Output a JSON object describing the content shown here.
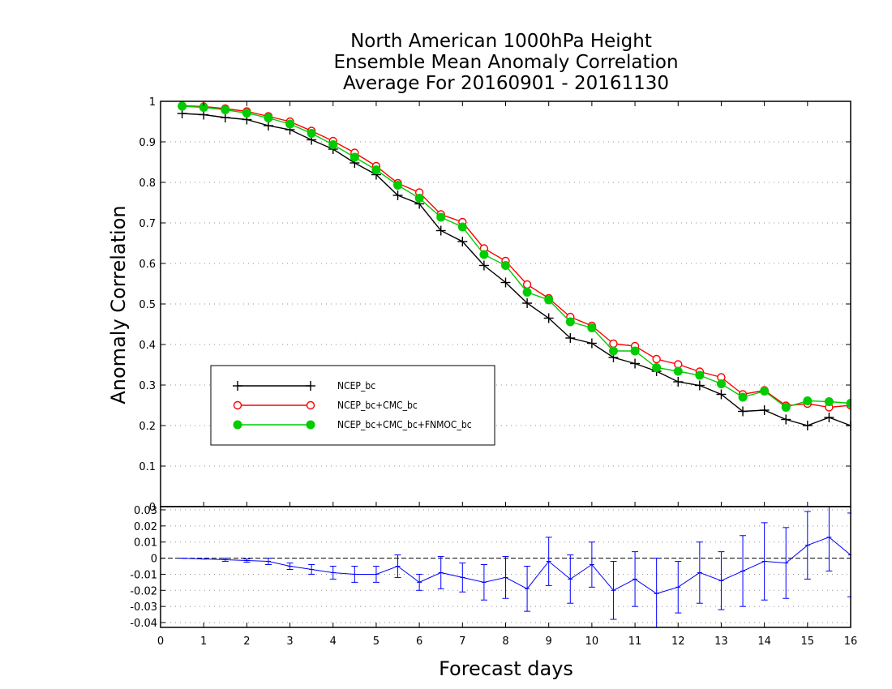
{
  "chart_data": [
    {
      "type": "line",
      "title_lines": [
        "North American 1000hPa Height",
        "Ensemble Mean Anomaly Correlation",
        "Average For 20160901 - 20161130"
      ],
      "xlabel": "Forecast days",
      "ylabel": "Anomaly Correlation",
      "xlim": [
        0,
        16
      ],
      "ylim": [
        0,
        1
      ],
      "grid": true,
      "legend_position": "lower-left",
      "x_ticks": [
        "0",
        "1",
        "2",
        "3",
        "4",
        "5",
        "6",
        "7",
        "8",
        "9",
        "10",
        "11",
        "12",
        "13",
        "14",
        "15",
        "16"
      ],
      "y_ticks": [
        "0",
        "0.1",
        "0.2",
        "0.3",
        "0.4",
        "0.5",
        "0.6",
        "0.7",
        "0.8",
        "0.9",
        "1"
      ],
      "x": [
        0.5,
        1,
        1.5,
        2,
        2.5,
        3,
        3.5,
        4,
        4.5,
        5,
        5.5,
        6,
        6.5,
        7,
        7.5,
        8,
        8.5,
        9,
        9.5,
        10,
        10.5,
        11,
        11.5,
        12,
        12.5,
        13,
        13.5,
        14,
        14.5,
        15,
        15.5,
        16
      ],
      "series": [
        {
          "name": "NCEP_bc",
          "color": "#000000",
          "marker": "plus",
          "values": [
            0.97,
            0.967,
            0.96,
            0.955,
            0.94,
            0.93,
            0.905,
            0.882,
            0.848,
            0.819,
            0.768,
            0.747,
            0.681,
            0.654,
            0.595,
            0.553,
            0.502,
            0.465,
            0.416,
            0.403,
            0.368,
            0.353,
            0.334,
            0.308,
            0.299,
            0.277,
            0.235,
            0.238,
            0.215,
            0.2,
            0.22,
            0.2
          ]
        },
        {
          "name": "NCEP_bc+CMC_bc",
          "color": "#ff0000",
          "marker": "open-circle",
          "values": [
            0.989,
            0.987,
            0.982,
            0.975,
            0.963,
            0.95,
            0.927,
            0.902,
            0.873,
            0.84,
            0.798,
            0.775,
            0.721,
            0.702,
            0.637,
            0.606,
            0.548,
            0.514,
            0.468,
            0.446,
            0.402,
            0.396,
            0.364,
            0.351,
            0.333,
            0.319,
            0.277,
            0.287,
            0.249,
            0.254,
            0.245,
            0.25
          ]
        },
        {
          "name": "NCEP_bc+CMC_bc+FNMOC_bc",
          "color": "#00cc00",
          "marker": "filled-circle",
          "values": [
            0.988,
            0.985,
            0.979,
            0.971,
            0.959,
            0.944,
            0.921,
            0.893,
            0.862,
            0.831,
            0.793,
            0.761,
            0.714,
            0.69,
            0.622,
            0.595,
            0.529,
            0.51,
            0.456,
            0.441,
            0.384,
            0.384,
            0.343,
            0.334,
            0.324,
            0.303,
            0.27,
            0.285,
            0.245,
            0.261,
            0.259,
            0.255
          ]
        }
      ]
    },
    {
      "type": "line",
      "xlim": [
        0,
        16
      ],
      "ylim": [
        -0.043,
        0.032
      ],
      "y_ticks": [
        "-0.04",
        "-0.03",
        "-0.02",
        "-0.01",
        "0",
        "0.01",
        "0.02",
        "0.03"
      ],
      "zero_line": true,
      "series": [
        {
          "color": "#0000ff",
          "marker": "error-bar",
          "values": [
            0.0,
            -0.0005,
            -0.001,
            -0.0015,
            -0.002,
            -0.005,
            -0.007,
            -0.009,
            -0.01,
            -0.01,
            -0.005,
            -0.015,
            -0.009,
            -0.012,
            -0.015,
            -0.012,
            -0.019,
            -0.002,
            -0.013,
            -0.004,
            -0.02,
            -0.013,
            -0.022,
            -0.018,
            -0.009,
            -0.014,
            -0.008,
            -0.002,
            -0.003,
            0.008,
            0.013,
            0.002
          ],
          "error": [
            0.0,
            0.0,
            0.001,
            0.001,
            0.002,
            0.002,
            0.003,
            0.004,
            0.005,
            0.005,
            0.007,
            0.005,
            0.01,
            0.009,
            0.011,
            0.013,
            0.014,
            0.015,
            0.015,
            0.014,
            0.018,
            0.017,
            0.022,
            0.016,
            0.019,
            0.018,
            0.022,
            0.024,
            0.022,
            0.021,
            0.021,
            0.026
          ]
        }
      ]
    }
  ]
}
